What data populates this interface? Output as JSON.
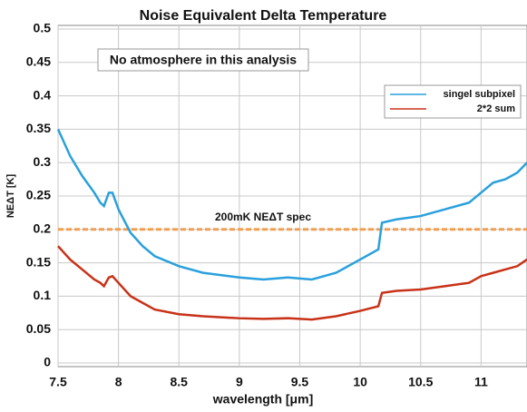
{
  "chart_data": {
    "type": "line",
    "title": "Noise Equivalent Delta Temperature",
    "x_label": "wavelength [μm]",
    "y_label": "NEΔT [K]",
    "annotation": "No atmosphere in this analysis",
    "spec_label": "200mK NEΔT spec",
    "spec_line": 0.2,
    "spec_color": "#f0a050",
    "x": [
      7.5,
      7.6,
      7.7,
      7.8,
      7.85,
      7.88,
      7.92,
      7.95,
      8.0,
      8.1,
      8.2,
      8.3,
      8.5,
      8.7,
      9.0,
      9.2,
      9.4,
      9.6,
      9.8,
      10.0,
      10.15,
      10.18,
      10.3,
      10.5,
      10.7,
      10.9,
      11.0,
      11.1,
      11.2,
      11.3,
      11.38
    ],
    "series": [
      {
        "name": "singel subpixel",
        "color": "#2aa0dc",
        "values": [
          0.35,
          0.31,
          0.28,
          0.255,
          0.24,
          0.235,
          0.255,
          0.255,
          0.23,
          0.195,
          0.175,
          0.16,
          0.145,
          0.135,
          0.128,
          0.125,
          0.128,
          0.125,
          0.135,
          0.155,
          0.17,
          0.21,
          0.215,
          0.22,
          0.23,
          0.24,
          0.255,
          0.27,
          0.275,
          0.285,
          0.3
        ]
      },
      {
        "name": "2*2 sum",
        "color": "#c83218",
        "values": [
          0.175,
          0.155,
          0.14,
          0.125,
          0.12,
          0.115,
          0.128,
          0.13,
          0.12,
          0.1,
          0.09,
          0.08,
          0.073,
          0.07,
          0.067,
          0.066,
          0.067,
          0.065,
          0.07,
          0.078,
          0.085,
          0.105,
          0.108,
          0.11,
          0.115,
          0.12,
          0.13,
          0.135,
          0.14,
          0.145,
          0.155
        ]
      }
    ],
    "xlim": [
      7.5,
      11.38
    ],
    "ylim": [
      0,
      0.5
    ],
    "xticks": [
      7.5,
      8,
      8.5,
      9,
      9.5,
      10,
      10.5,
      11
    ],
    "yticks": [
      0,
      0.05,
      0.1,
      0.15,
      0.2,
      0.25,
      0.3,
      0.35,
      0.4,
      0.45,
      0.5
    ],
    "grid": true,
    "legend_position": "upper right"
  }
}
